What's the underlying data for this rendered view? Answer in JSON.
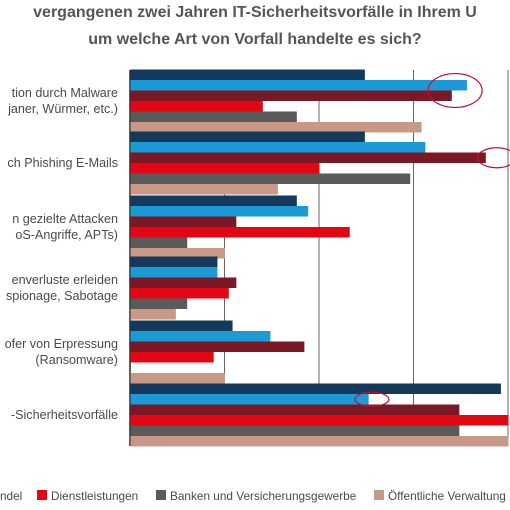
{
  "chart_data": {
    "type": "bar",
    "orientation": "horizontal",
    "title_lines": [
      "vergangenen zwei Jahren IT-Sicherheitsvorfälle in Ihrem U",
      "um welche Art von Vorfall handelte es sich?"
    ],
    "categories": [
      [
        "tion durch Malware",
        "janer, Würmer, etc.)"
      ],
      [
        "ch Phishing E-Mails"
      ],
      [
        "n gezielte Attacken",
        "oS-Angriffe, APTs)"
      ],
      [
        "enverluste erleiden",
        "spionage, Sabotage"
      ],
      [
        "ofer von Erpressung",
        "(Ransomware)"
      ],
      [
        "-Sicherheitsvorfälle"
      ]
    ],
    "xlim": [
      0,
      100
    ],
    "grid": true,
    "legend_position": "bottom",
    "series": [
      {
        "name": "ndel",
        "color": "#14395B",
        "values": [
          62,
          62,
          44,
          23,
          27,
          98
        ]
      },
      {
        "name": "",
        "color": "#1B9AD6",
        "values": [
          89,
          78,
          47,
          23,
          37,
          63
        ]
      },
      {
        "name": "",
        "color": "#7A1826",
        "values": [
          85,
          94,
          28,
          28,
          46,
          87
        ]
      },
      {
        "name": "Dienstleistungen",
        "color": "#E30613",
        "values": [
          35,
          50,
          58,
          26,
          22,
          102
        ]
      },
      {
        "name": "Banken und Versicherungsgewerbe",
        "color": "#5A5A5A",
        "values": [
          44,
          74,
          15,
          15,
          0,
          87
        ]
      },
      {
        "name": "Öffentliche Verwaltung",
        "color": "#C99988",
        "values": [
          77,
          39,
          25,
          12,
          25,
          102
        ]
      }
    ],
    "annotations": [
      {
        "type": "ellipse",
        "category_index": 0,
        "series_index": [
          1,
          2
        ],
        "x_center": 86
      },
      {
        "type": "ellipse",
        "category_index": 1,
        "series_index": 2,
        "x_center": 97
      },
      {
        "type": "ellipse",
        "category_index": 5,
        "series_index": 1,
        "x_center": 64
      }
    ],
    "colors": {
      "annotation": "#C40F2F",
      "grid": "#555555"
    }
  }
}
